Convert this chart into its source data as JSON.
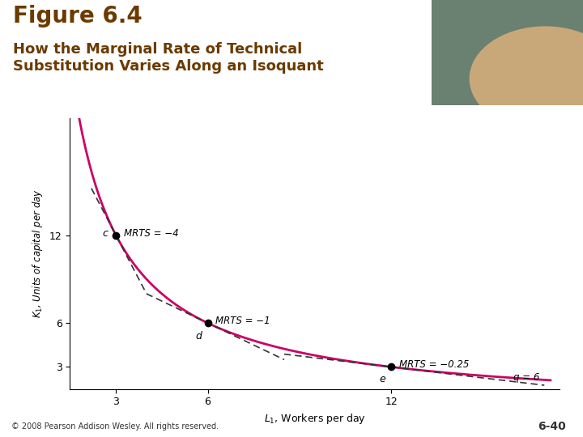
{
  "title_line1": "Figure 6.4",
  "title_line2": "How the Marginal Rate of Technical\nSubstitution Varies Along an Isoquant",
  "xlabel": "$L_1$, Workers per day",
  "ylabel": "$K_1$, Units of capital per day",
  "background_color": "#ffffff",
  "plot_bg_color": "#ffffff",
  "curve_color": "#cc0066",
  "tangent_color": "#333333",
  "point_c": [
    3,
    12
  ],
  "point_d": [
    6,
    6
  ],
  "point_e": [
    12,
    3
  ],
  "label_c": "c",
  "label_d": "d",
  "label_e": "e",
  "mrts_c": "MRTS = −4",
  "mrts_d": "MRTS = −1",
  "mrts_e": "MRTS = −0.25",
  "q_label": "q = 6",
  "xticks": [
    3,
    6,
    12
  ],
  "yticks": [
    3,
    6,
    12
  ],
  "xlim": [
    1.5,
    17.5
  ],
  "ylim": [
    1.5,
    20
  ],
  "isoquant_constant": 36,
  "footer_text": "© 2008 Pearson Addison Wesley. All rights reserved.",
  "page_number": "6-40",
  "title_color": "#6b3a00",
  "title1_fontsize": 20,
  "title2_fontsize": 13,
  "bar_color": "#b8960c",
  "img_bg": "#6a8070",
  "img_ball": "#c8a878"
}
